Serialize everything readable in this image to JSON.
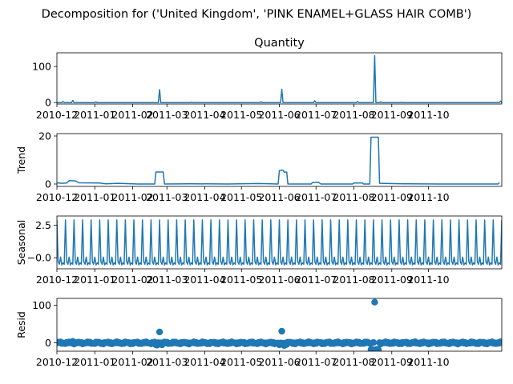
{
  "figure": {
    "suptitle": "Decomposition for ('United Kingdom', 'PINK ENAMEL+GLASS HAIR COMB')"
  },
  "chart_data": [
    {
      "type": "line",
      "title": "Quantity",
      "ylabel": "",
      "ylim": [
        -4,
        138
      ],
      "yticks": [
        0,
        100
      ],
      "xlim": [
        "2010-12-01",
        "2011-11-30"
      ],
      "xticks": [
        "2010-12",
        "2011-01",
        "2011-02",
        "2011-03",
        "2011-04",
        "2011-05",
        "2011-06",
        "2011-07",
        "2011-08",
        "2011-09",
        "2011-10"
      ],
      "color": "#1f77b4",
      "baseline": 0,
      "spikes": [
        {
          "x": "2010-12-06",
          "y": 3
        },
        {
          "x": "2010-12-14",
          "y": 6
        },
        {
          "x": "2011-01-02",
          "y": 2
        },
        {
          "x": "2011-02-23",
          "y": 36
        },
        {
          "x": "2011-03-21",
          "y": 1
        },
        {
          "x": "2011-05-17",
          "y": 2
        },
        {
          "x": "2011-06-03",
          "y": 37
        },
        {
          "x": "2011-06-30",
          "y": 5
        },
        {
          "x": "2011-08-04",
          "y": 3
        },
        {
          "x": "2011-08-18",
          "y": 130
        },
        {
          "x": "2011-08-23",
          "y": 2
        },
        {
          "x": "2011-09-09",
          "y": 1
        },
        {
          "x": "2011-11-29",
          "y": 4
        }
      ]
    },
    {
      "type": "line",
      "title": "",
      "ylabel": "Trend",
      "ylim": [
        -1,
        21
      ],
      "yticks": [
        0,
        20
      ],
      "xlim": [
        "2010-12-01",
        "2011-11-30"
      ],
      "xticks": [
        "2010-12",
        "2011-01",
        "2011-02",
        "2011-03",
        "2011-04",
        "2011-05",
        "2011-06",
        "2011-07",
        "2011-08",
        "2011-09",
        "2011-10"
      ],
      "color": "#1f77b4",
      "points": [
        {
          "x": "2010-12-01",
          "y": 0.5
        },
        {
          "x": "2010-12-05",
          "y": 0.3
        },
        {
          "x": "2010-12-09",
          "y": 0.4
        },
        {
          "x": "2010-12-11",
          "y": 1.4
        },
        {
          "x": "2010-12-16",
          "y": 1.3
        },
        {
          "x": "2010-12-19",
          "y": 0.5
        },
        {
          "x": "2011-01-05",
          "y": 0.4
        },
        {
          "x": "2011-01-10",
          "y": 0.1
        },
        {
          "x": "2011-01-20",
          "y": 0.3
        },
        {
          "x": "2011-02-05",
          "y": 0.0
        },
        {
          "x": "2011-02-19",
          "y": 0.0
        },
        {
          "x": "2011-02-20",
          "y": 5.0
        },
        {
          "x": "2011-02-26",
          "y": 5.0
        },
        {
          "x": "2011-02-27",
          "y": 0.0
        },
        {
          "x": "2011-03-20",
          "y": 0.1
        },
        {
          "x": "2011-04-20",
          "y": 0.0
        },
        {
          "x": "2011-05-15",
          "y": 0.2
        },
        {
          "x": "2011-05-31",
          "y": 0.0
        },
        {
          "x": "2011-06-01",
          "y": 5.6
        },
        {
          "x": "2011-06-04",
          "y": 5.8
        },
        {
          "x": "2011-06-05",
          "y": 4.9
        },
        {
          "x": "2011-06-07",
          "y": 5.0
        },
        {
          "x": "2011-06-08",
          "y": 0.0
        },
        {
          "x": "2011-06-27",
          "y": 0.0
        },
        {
          "x": "2011-06-28",
          "y": 0.6
        },
        {
          "x": "2011-07-03",
          "y": 0.7
        },
        {
          "x": "2011-07-05",
          "y": 0.0
        },
        {
          "x": "2011-07-31",
          "y": 0.0
        },
        {
          "x": "2011-08-01",
          "y": 0.4
        },
        {
          "x": "2011-08-08",
          "y": 0.4
        },
        {
          "x": "2011-08-09",
          "y": 0.0
        },
        {
          "x": "2011-08-14",
          "y": 0.0
        },
        {
          "x": "2011-08-15",
          "y": 19.5
        },
        {
          "x": "2011-08-21",
          "y": 19.5
        },
        {
          "x": "2011-08-22",
          "y": 0.3
        },
        {
          "x": "2011-09-10",
          "y": 0.1
        },
        {
          "x": "2011-10-10",
          "y": 0.0
        },
        {
          "x": "2011-11-27",
          "y": 0.0
        },
        {
          "x": "2011-11-28",
          "y": 0.6
        }
      ]
    },
    {
      "type": "line",
      "title": "",
      "ylabel": "Seasonal",
      "ylim": [
        -0.85,
        3.2
      ],
      "yticks": [
        -0.0,
        2.5
      ],
      "ytick_labels": [
        "−0.0",
        "2.5"
      ],
      "xlim": [
        "2010-12-01",
        "2011-11-30"
      ],
      "xticks": [
        "2010-12",
        "2011-01",
        "2011-02",
        "2011-03",
        "2011-04",
        "2011-05",
        "2011-06",
        "2011-07",
        "2011-08",
        "2011-09",
        "2011-10"
      ],
      "color": "#1f77b4",
      "period_days": 7,
      "weekly_pattern": [
        2.9,
        -0.3,
        -0.5,
        0.05,
        -0.55,
        -0.4,
        -0.5
      ]
    },
    {
      "type": "scatter",
      "title": "",
      "ylabel": "Resid",
      "ylim": [
        -22,
        118
      ],
      "yticks": [
        0,
        100
      ],
      "xlim": [
        "2010-12-01",
        "2011-11-30"
      ],
      "xticks": [
        "2010-12",
        "2011-01",
        "2011-02",
        "2011-03",
        "2011-04",
        "2011-05",
        "2011-06",
        "2011-07",
        "2011-08",
        "2011-09",
        "2011-10"
      ],
      "color": "#1f77b4",
      "zero_line": true,
      "baseline_range": [
        -3,
        3
      ],
      "outliers": [
        {
          "x": "2010-12-14",
          "y": 4
        },
        {
          "x": "2011-02-20",
          "y": -5
        },
        {
          "x": "2011-02-21",
          "y": -6
        },
        {
          "x": "2011-02-23",
          "y": 29
        },
        {
          "x": "2011-02-25",
          "y": -5
        },
        {
          "x": "2011-06-01",
          "y": -5
        },
        {
          "x": "2011-06-03",
          "y": 31
        },
        {
          "x": "2011-06-05",
          "y": -7
        },
        {
          "x": "2011-06-07",
          "y": -4
        },
        {
          "x": "2011-08-15",
          "y": -18
        },
        {
          "x": "2011-08-16",
          "y": -17
        },
        {
          "x": "2011-08-18",
          "y": 108
        },
        {
          "x": "2011-08-19",
          "y": -18
        },
        {
          "x": "2011-08-20",
          "y": -17
        },
        {
          "x": "2011-08-21",
          "y": -18
        }
      ]
    }
  ]
}
